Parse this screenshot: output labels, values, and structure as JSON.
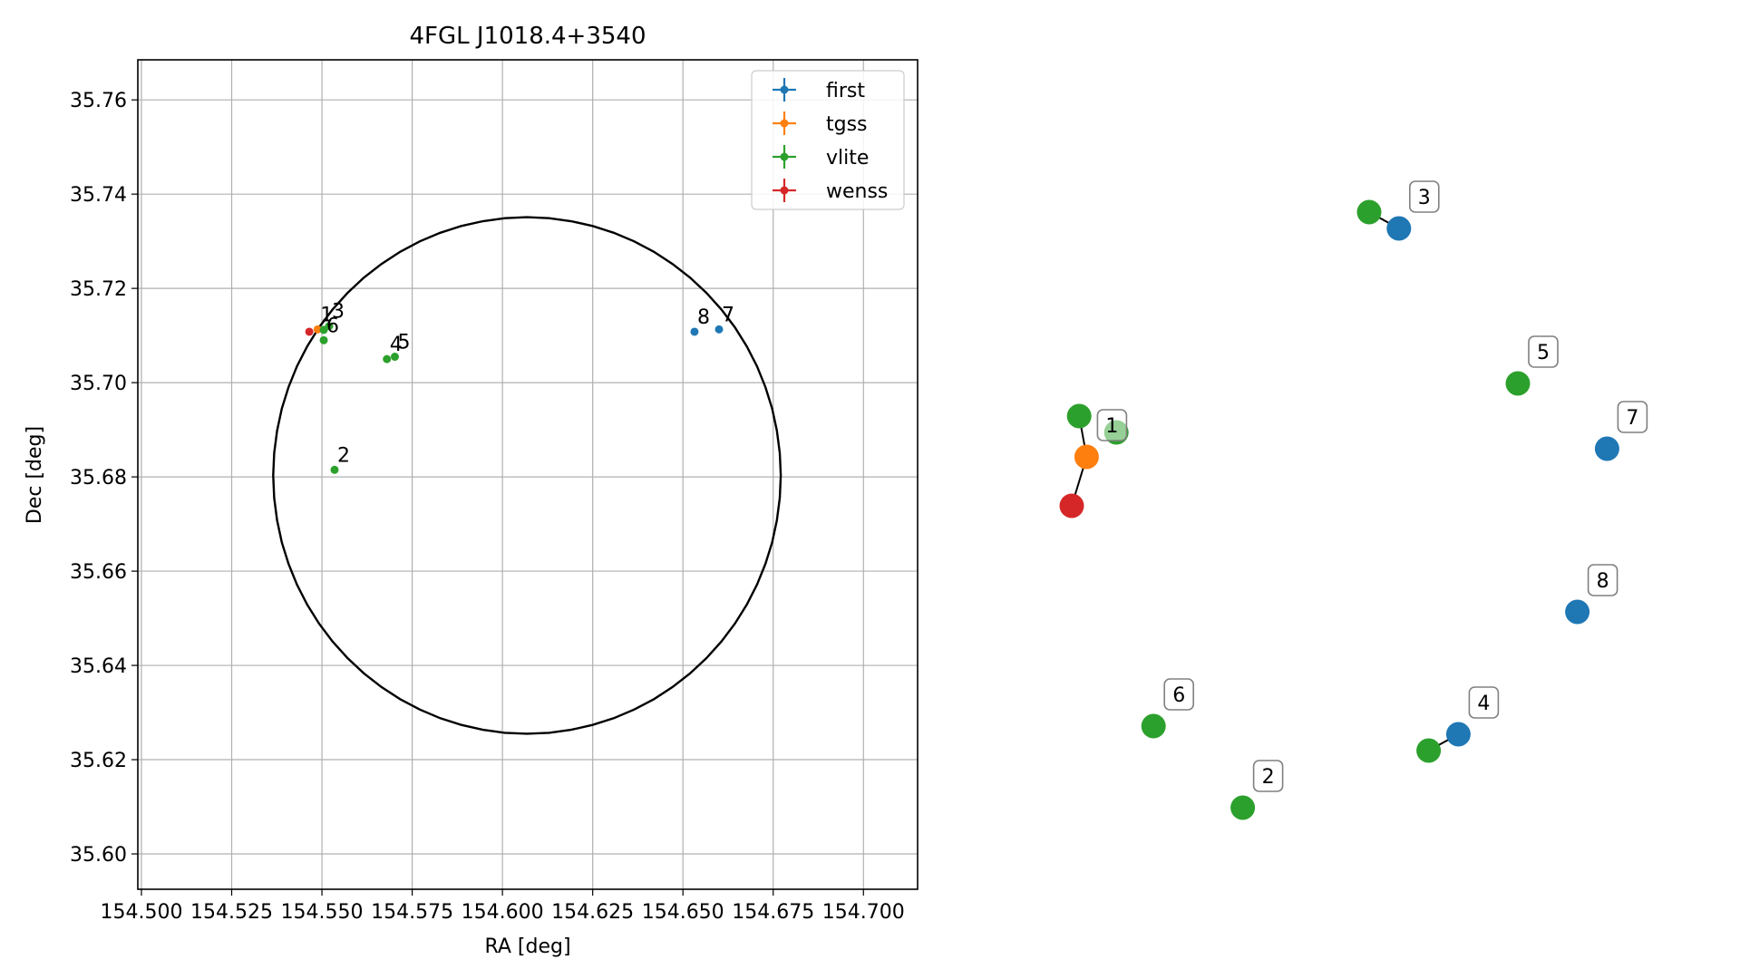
{
  "chart_data": [
    {
      "type": "scatter",
      "title": "4FGL J1018.4+3540",
      "xlabel": "RA [deg]",
      "ylabel": "Dec [deg]",
      "xlim": [
        154.499,
        154.715
      ],
      "ylim": [
        35.5925,
        35.7685
      ],
      "xticks": [
        154.5,
        154.525,
        154.55,
        154.575,
        154.6,
        154.625,
        154.65,
        154.675,
        154.7
      ],
      "xtick_labels": [
        "154.500",
        "154.525",
        "154.550",
        "154.575",
        "154.600",
        "154.625",
        "154.650",
        "154.675",
        "154.700"
      ],
      "yticks": [
        35.6,
        35.62,
        35.64,
        35.66,
        35.68,
        35.7,
        35.72,
        35.74,
        35.76
      ],
      "ytick_labels": [
        "35.60",
        "35.62",
        "35.64",
        "35.66",
        "35.68",
        "35.70",
        "35.72",
        "35.74",
        "35.76"
      ],
      "grid": true,
      "legend_position": "top-right",
      "colors": {
        "first": "#1f77b4",
        "tgss": "#ff7f0e",
        "vlite": "#2ca02c",
        "wenss": "#d62728"
      },
      "legend": [
        "first",
        "tgss",
        "vlite",
        "wenss"
      ],
      "ellipse": {
        "center_ra": 154.6068,
        "center_dec": 35.6803,
        "semi_ra": 0.0703,
        "semi_dec": 0.0548
      },
      "points": [
        {
          "survey": "wenss",
          "ra": 154.5465,
          "dec": 35.7108
        },
        {
          "survey": "tgss",
          "ra": 154.5488,
          "dec": 35.7113
        },
        {
          "survey": "vlite",
          "ra": 154.5505,
          "dec": 35.7112
        },
        {
          "survey": "vlite",
          "ra": 154.552,
          "dec": 35.712
        },
        {
          "survey": "vlite",
          "ra": 154.5505,
          "dec": 35.709
        },
        {
          "survey": "vlite",
          "ra": 154.5535,
          "dec": 35.6815
        },
        {
          "survey": "vlite",
          "ra": 154.568,
          "dec": 35.705
        },
        {
          "survey": "vlite",
          "ra": 154.5702,
          "dec": 35.7055
        },
        {
          "survey": "first",
          "ra": 154.6532,
          "dec": 35.7108
        },
        {
          "survey": "first",
          "ra": 154.66,
          "dec": 35.7113
        }
      ],
      "point_labels": [
        {
          "text": "1",
          "ra": 154.5488,
          "dec": 35.7113
        },
        {
          "text": "3",
          "ra": 154.552,
          "dec": 35.712
        },
        {
          "text": "6",
          "ra": 154.5505,
          "dec": 35.709
        },
        {
          "text": "2",
          "ra": 154.5535,
          "dec": 35.6815
        },
        {
          "text": "4",
          "ra": 154.568,
          "dec": 35.705
        },
        {
          "text": "5",
          "ra": 154.5702,
          "dec": 35.7055
        },
        {
          "text": "8",
          "ra": 154.6532,
          "dec": 35.7108
        },
        {
          "text": "7",
          "ra": 154.66,
          "dec": 35.7113
        }
      ]
    },
    {
      "type": "network",
      "nodes": [
        {
          "id": "n1",
          "survey": "tgss",
          "label": "1",
          "x": 0.12,
          "y": 0.46
        },
        {
          "id": "n1a",
          "survey": "vlite",
          "label": "",
          "x": 0.11,
          "y": 0.41
        },
        {
          "id": "n1b",
          "survey": "vlite",
          "label": "",
          "x": 0.16,
          "y": 0.43
        },
        {
          "id": "n1c",
          "survey": "wenss",
          "label": "",
          "x": 0.1,
          "y": 0.52
        },
        {
          "id": "n3",
          "survey": "first",
          "label": "3",
          "x": 0.54,
          "y": 0.18
        },
        {
          "id": "n3a",
          "survey": "vlite",
          "label": "",
          "x": 0.5,
          "y": 0.16
        },
        {
          "id": "n5",
          "survey": "vlite",
          "label": "5",
          "x": 0.7,
          "y": 0.37
        },
        {
          "id": "n7",
          "survey": "first",
          "label": "7",
          "x": 0.82,
          "y": 0.45
        },
        {
          "id": "n8",
          "survey": "first",
          "label": "8",
          "x": 0.78,
          "y": 0.65
        },
        {
          "id": "n6",
          "survey": "vlite",
          "label": "6",
          "x": 0.21,
          "y": 0.79
        },
        {
          "id": "n2",
          "survey": "vlite",
          "label": "2",
          "x": 0.33,
          "y": 0.89
        },
        {
          "id": "n4",
          "survey": "first",
          "label": "4",
          "x": 0.62,
          "y": 0.8
        },
        {
          "id": "n4a",
          "survey": "vlite",
          "label": "",
          "x": 0.58,
          "y": 0.82
        }
      ],
      "edges": [
        [
          "n1",
          "n1a"
        ],
        [
          "n1",
          "n1c"
        ],
        [
          "n3",
          "n3a"
        ],
        [
          "n4",
          "n4a"
        ]
      ]
    }
  ]
}
